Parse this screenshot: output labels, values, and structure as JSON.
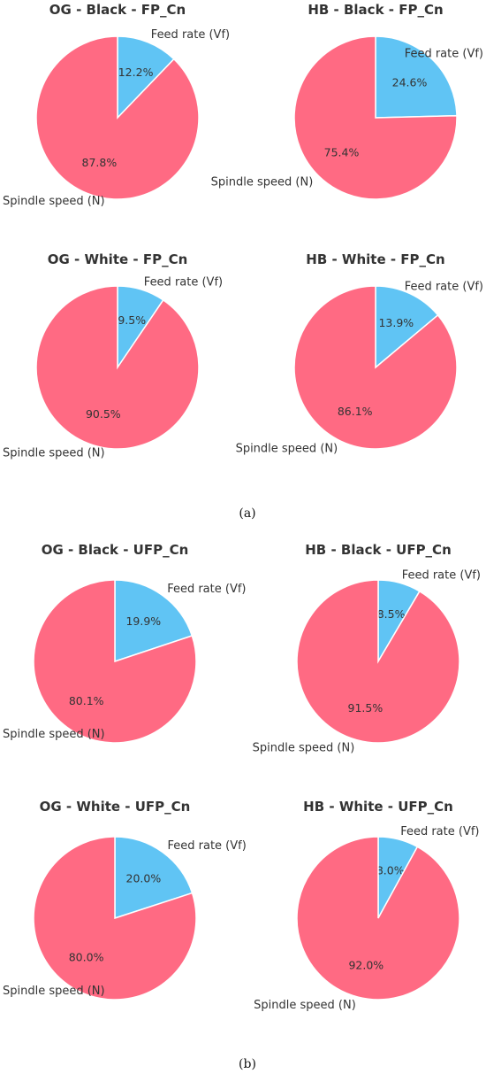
{
  "colors": {
    "feed": "#60C4F4",
    "spindle": "#FF6A83"
  },
  "panel_labels": {
    "a": "(a)",
    "b": "(b)"
  },
  "chart_data": [
    {
      "type": "pie",
      "title": "OG - Black - FP_Cn",
      "slices": [
        {
          "label": "Feed rate (Vf)",
          "value": 12.2,
          "pct_text": "12.2%"
        },
        {
          "label": "Spindle speed (N)",
          "value": 87.8,
          "pct_text": "87.8%"
        }
      ]
    },
    {
      "type": "pie",
      "title": "HB - Black - FP_Cn",
      "slices": [
        {
          "label": "Feed rate (Vf)",
          "value": 24.6,
          "pct_text": "24.6%"
        },
        {
          "label": "Spindle speed (N)",
          "value": 75.4,
          "pct_text": "75.4%"
        }
      ]
    },
    {
      "type": "pie",
      "title": "OG - White - FP_Cn",
      "slices": [
        {
          "label": "Feed rate (Vf)",
          "value": 9.5,
          "pct_text": "9.5%"
        },
        {
          "label": "Spindle speed (N)",
          "value": 90.5,
          "pct_text": "90.5%"
        }
      ]
    },
    {
      "type": "pie",
      "title": "HB - White - FP_Cn",
      "slices": [
        {
          "label": "Feed rate (Vf)",
          "value": 13.9,
          "pct_text": "13.9%"
        },
        {
          "label": "Spindle speed (N)",
          "value": 86.1,
          "pct_text": "86.1%"
        }
      ]
    },
    {
      "type": "pie",
      "title": "OG - Black - UFP_Cn",
      "slices": [
        {
          "label": "Feed rate (Vf)",
          "value": 19.9,
          "pct_text": "19.9%"
        },
        {
          "label": "Spindle speed (N)",
          "value": 80.1,
          "pct_text": "80.1%"
        }
      ]
    },
    {
      "type": "pie",
      "title": "HB - Black - UFP_Cn",
      "slices": [
        {
          "label": "Feed rate (Vf)",
          "value": 8.5,
          "pct_text": "8.5%"
        },
        {
          "label": "Spindle speed (N)",
          "value": 91.5,
          "pct_text": "91.5%"
        }
      ]
    },
    {
      "type": "pie",
      "title": "OG - White - UFP_Cn",
      "slices": [
        {
          "label": "Feed rate (Vf)",
          "value": 20.0,
          "pct_text": "20.0%"
        },
        {
          "label": "Spindle speed (N)",
          "value": 80.0,
          "pct_text": "80.0%"
        }
      ]
    },
    {
      "type": "pie",
      "title": "HB - White - UFP_Cn",
      "slices": [
        {
          "label": "Feed rate (Vf)",
          "value": 8.0,
          "pct_text": "8.0%"
        },
        {
          "label": "Spindle speed (N)",
          "value": 92.0,
          "pct_text": "92.0%"
        }
      ]
    }
  ]
}
